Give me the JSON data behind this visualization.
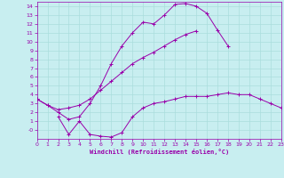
{
  "xlabel": "Windchill (Refroidissement éolien,°C)",
  "bg_color": "#c8eef0",
  "line_color": "#9900aa",
  "grid_color": "#aadddd",
  "xlim": [
    0,
    23
  ],
  "ylim": [
    -1,
    14.5
  ],
  "xticks": [
    0,
    1,
    2,
    3,
    4,
    5,
    6,
    7,
    8,
    9,
    10,
    11,
    12,
    13,
    14,
    15,
    16,
    17,
    18,
    19,
    20,
    21,
    22,
    23
  ],
  "yticks": [
    0,
    1,
    2,
    3,
    4,
    5,
    6,
    7,
    8,
    9,
    10,
    11,
    12,
    13,
    14
  ],
  "line1_x": [
    0,
    1,
    2,
    3,
    4,
    5,
    6,
    7,
    8,
    9,
    10,
    11,
    12,
    13,
    14,
    15,
    16,
    17,
    18,
    19,
    20
  ],
  "line1_y": [
    3.5,
    2.8,
    2.0,
    1.2,
    1.5,
    3.0,
    5.0,
    7.5,
    9.5,
    11.0,
    12.2,
    12.0,
    13.0,
    14.2,
    14.3,
    14.0,
    13.2,
    11.3,
    9.5,
    null,
    null
  ],
  "line2_x": [
    0,
    1,
    2,
    3,
    4,
    5,
    6,
    7,
    8,
    9,
    10,
    11,
    12,
    13,
    14,
    15,
    16,
    17,
    18,
    19,
    20,
    21,
    22,
    23
  ],
  "line2_y": [
    3.5,
    2.8,
    2.3,
    2.5,
    2.8,
    3.5,
    4.5,
    5.5,
    6.5,
    7.5,
    8.2,
    8.8,
    9.5,
    10.2,
    10.8,
    11.2,
    null,
    null,
    null,
    null,
    null,
    null,
    null,
    null
  ],
  "line3_x": [
    0,
    1,
    2,
    3,
    4,
    5,
    6,
    7,
    8,
    9,
    10,
    11,
    12,
    13,
    14,
    15,
    16,
    17,
    18,
    19,
    20,
    21,
    22,
    23
  ],
  "line3_y": [
    null,
    null,
    1.5,
    -0.5,
    1.0,
    -0.5,
    -0.7,
    -0.8,
    -0.3,
    1.5,
    2.5,
    3.0,
    3.2,
    3.5,
    3.8,
    3.8,
    3.8,
    4.0,
    4.2,
    4.0,
    4.0,
    3.5,
    3.0,
    2.5
  ]
}
